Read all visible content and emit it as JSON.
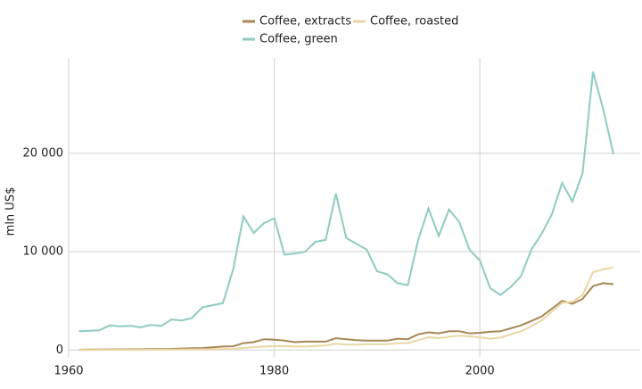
{
  "chart_data": {
    "type": "line",
    "ylabel": "mln US$",
    "x": [
      1961,
      1962,
      1963,
      1964,
      1965,
      1966,
      1967,
      1968,
      1969,
      1970,
      1971,
      1972,
      1973,
      1974,
      1975,
      1976,
      1977,
      1978,
      1979,
      1980,
      1981,
      1982,
      1983,
      1984,
      1985,
      1986,
      1987,
      1988,
      1989,
      1990,
      1991,
      1992,
      1993,
      1994,
      1995,
      1996,
      1997,
      1998,
      1999,
      2000,
      2001,
      2002,
      2003,
      2004,
      2005,
      2006,
      2007,
      2008,
      2009,
      2010,
      2011,
      2012,
      2013
    ],
    "series": [
      {
        "name": "Coffee, extracts",
        "color": "#a88755",
        "values": [
          30,
          40,
          50,
          60,
          60,
          70,
          70,
          90,
          100,
          120,
          150,
          180,
          200,
          280,
          350,
          380,
          700,
          800,
          1100,
          1050,
          950,
          800,
          850,
          850,
          850,
          1200,
          1100,
          1000,
          950,
          950,
          950,
          1150,
          1100,
          1600,
          1800,
          1700,
          1900,
          1900,
          1700,
          1750,
          1850,
          1900,
          2200,
          2500,
          2950,
          3400,
          4200,
          5000,
          4700,
          5200,
          6500,
          6800,
          6700
        ]
      },
      {
        "name": "Coffee, roasted",
        "color": "#ebd6a3",
        "values": [
          10,
          10,
          20,
          20,
          20,
          20,
          20,
          30,
          30,
          40,
          50,
          60,
          70,
          80,
          100,
          120,
          200,
          300,
          350,
          400,
          400,
          350,
          350,
          400,
          450,
          650,
          550,
          550,
          600,
          600,
          600,
          700,
          700,
          1000,
          1300,
          1200,
          1350,
          1450,
          1400,
          1300,
          1150,
          1250,
          1600,
          1900,
          2400,
          3000,
          3900,
          4800,
          4900,
          5600,
          7900,
          8200,
          8400
        ]
      },
      {
        "name": "Coffee, green",
        "color": "#8ecbc2",
        "values": [
          1900,
          1950,
          2000,
          2500,
          2400,
          2450,
          2300,
          2550,
          2450,
          3100,
          3000,
          3250,
          4350,
          4550,
          4750,
          8200,
          13600,
          11900,
          12900,
          13400,
          9700,
          9800,
          10000,
          11000,
          11200,
          15900,
          11400,
          10800,
          10200,
          8000,
          7700,
          6800,
          6600,
          11200,
          14400,
          11600,
          14300,
          13000,
          10200,
          9100,
          6300,
          5600,
          6400,
          7500,
          10200,
          11800,
          13800,
          17000,
          15100,
          18000,
          28300,
          24500,
          19900
        ]
      }
    ],
    "xlim": [
      1960,
      2015.6
    ],
    "xticks": [
      1960,
      1980,
      2000
    ],
    "ylim": [
      -700,
      29700
    ],
    "yticks": [
      0,
      {
        "value": 10000,
        "label": "10 000"
      },
      {
        "value": 20000,
        "label": "20 000"
      }
    ],
    "grid": true,
    "legend": "top"
  }
}
